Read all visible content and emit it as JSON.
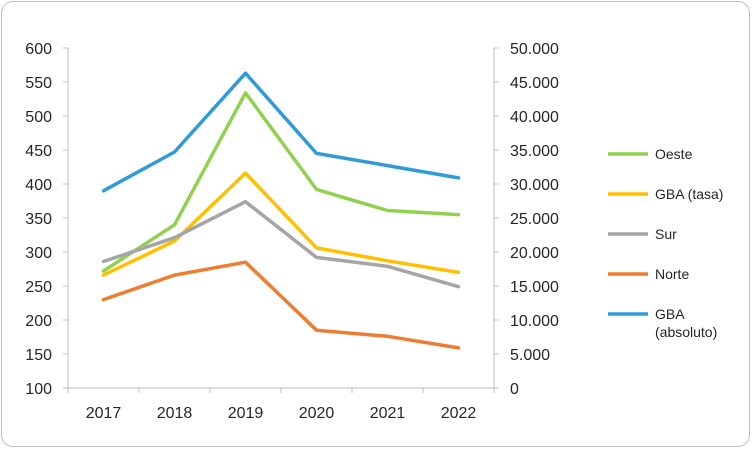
{
  "chart_data": {
    "type": "line",
    "categories": [
      "2017",
      "2018",
      "2019",
      "2020",
      "2021",
      "2022"
    ],
    "y_left": {
      "ylim": [
        100,
        600
      ],
      "ticks": [
        "600",
        "550",
        "500",
        "450",
        "400",
        "350",
        "300",
        "250",
        "200",
        "150",
        "100"
      ]
    },
    "y_right": {
      "ylim": [
        0,
        50000
      ],
      "ticks": [
        "50.000",
        "45.000",
        "40.000",
        "35.000",
        "30.000",
        "25.000",
        "20.000",
        "15.000",
        "10.000",
        "5.000",
        "0"
      ]
    },
    "series": [
      {
        "name": "Oeste",
        "axis": "left",
        "color": "#92D050",
        "values": [
          272,
          340,
          534,
          392,
          361,
          355
        ]
      },
      {
        "name": "GBA (tasa)",
        "axis": "left",
        "color": "#FFC000",
        "values": [
          266,
          316,
          416,
          306,
          287,
          270
        ]
      },
      {
        "name": "Sur",
        "axis": "left",
        "color": "#A5A5A5",
        "values": [
          286,
          321,
          374,
          292,
          279,
          249
        ]
      },
      {
        "name": "Norte",
        "axis": "left",
        "color": "#ED7D31",
        "values": [
          230,
          266,
          285,
          185,
          176,
          159
        ]
      },
      {
        "name": "GBA (absoluto)",
        "axis": "right",
        "color": "#2F9BD9",
        "values": [
          29000,
          34700,
          46300,
          34500,
          32700,
          30900
        ]
      }
    ],
    "legend": [
      [
        "Oeste"
      ],
      [
        "GBA (tasa)"
      ],
      [
        "Sur"
      ],
      [
        "Norte"
      ],
      [
        "GBA",
        "(absoluto)"
      ]
    ],
    "legend_position": "right",
    "grid": false
  }
}
